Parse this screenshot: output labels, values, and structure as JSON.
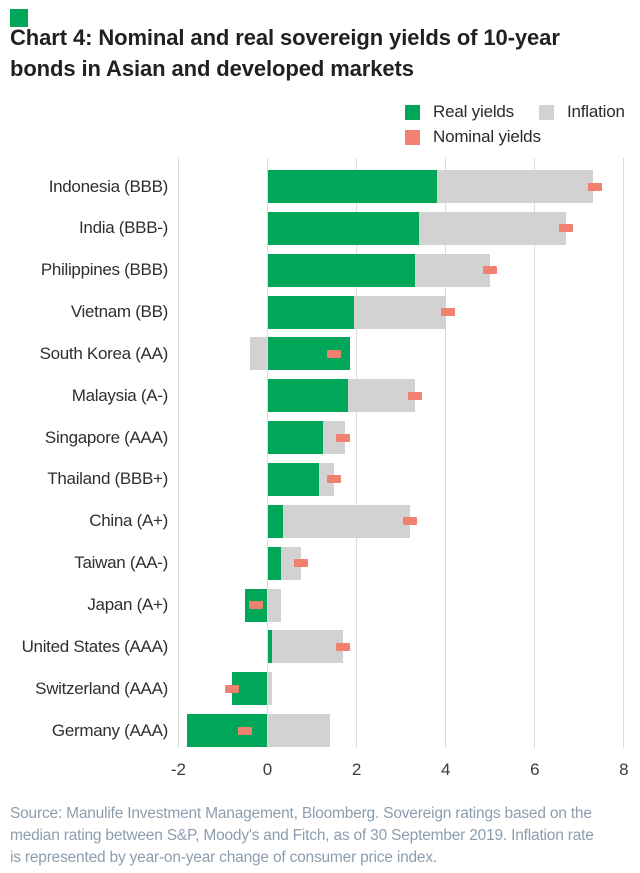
{
  "brand": {
    "accent_color": "#00A758"
  },
  "title": {
    "lines": [
      "Chart 4: Nominal and real sovereign yields of 10-year",
      "bonds in Asian and developed markets"
    ]
  },
  "legend": {
    "items": [
      {
        "label": "Real yields",
        "color": "#00A758"
      },
      {
        "label": "Inflation",
        "color": "#D2D2D2"
      },
      {
        "label": "Nominal yields",
        "color": "#F08170"
      }
    ]
  },
  "chart_data": {
    "type": "bar",
    "orientation": "horizontal",
    "stacked": true,
    "title": "Chart 4: Nominal and real sovereign yields of 10-year bonds in Asian and developed markets",
    "unit": "percent",
    "categories": [
      "Indonesia (BBB)",
      "India (BBB-)",
      "Philippines (BBB)",
      "Vietnam (BB)",
      "South Korea (AA)",
      "Malaysia (A-)",
      "Singapore (AAA)",
      "Thailand (BBB+)",
      "China (A+)",
      "Taiwan (AA-)",
      "Japan (A+)",
      "United States (AAA)",
      "Switzerland (AAA)",
      "Germany (AAA)"
    ],
    "series": [
      {
        "name": "Real yields",
        "color": "#00A758",
        "style": "bar",
        "values": [
          3.8,
          3.4,
          3.3,
          1.95,
          1.85,
          1.8,
          1.25,
          1.15,
          0.35,
          0.3,
          -0.5,
          0.1,
          -0.8,
          -1.8
        ]
      },
      {
        "name": "Inflation",
        "color": "#D2D2D2",
        "style": "bar",
        "values": [
          3.5,
          3.3,
          1.7,
          2.05,
          -0.4,
          1.5,
          0.5,
          0.35,
          2.85,
          0.45,
          0.3,
          1.6,
          0.1,
          1.4
        ]
      },
      {
        "name": "Nominal yields",
        "color": "#F08170",
        "style": "marker",
        "values": [
          7.35,
          6.7,
          5.0,
          4.05,
          1.5,
          3.3,
          1.7,
          1.5,
          3.2,
          0.75,
          -0.25,
          1.7,
          -0.8,
          -0.5
        ]
      }
    ],
    "xticks": [
      "-2",
      "0",
      "2",
      "4",
      "6",
      "8"
    ],
    "xtick_values": [
      -2,
      0,
      2,
      4,
      6,
      8
    ],
    "xlim": [
      -2,
      8
    ],
    "grid": "vertical",
    "legend_position": "top-right"
  },
  "source": {
    "lines": [
      "Source: Manulife Investment Management, Bloomberg. Sovereign ratings based on the",
      "median rating between S&P, Moody's and Fitch, as of 30 September 2019. Inflation rate",
      "is represented by year-on-year change of consumer price index."
    ]
  }
}
